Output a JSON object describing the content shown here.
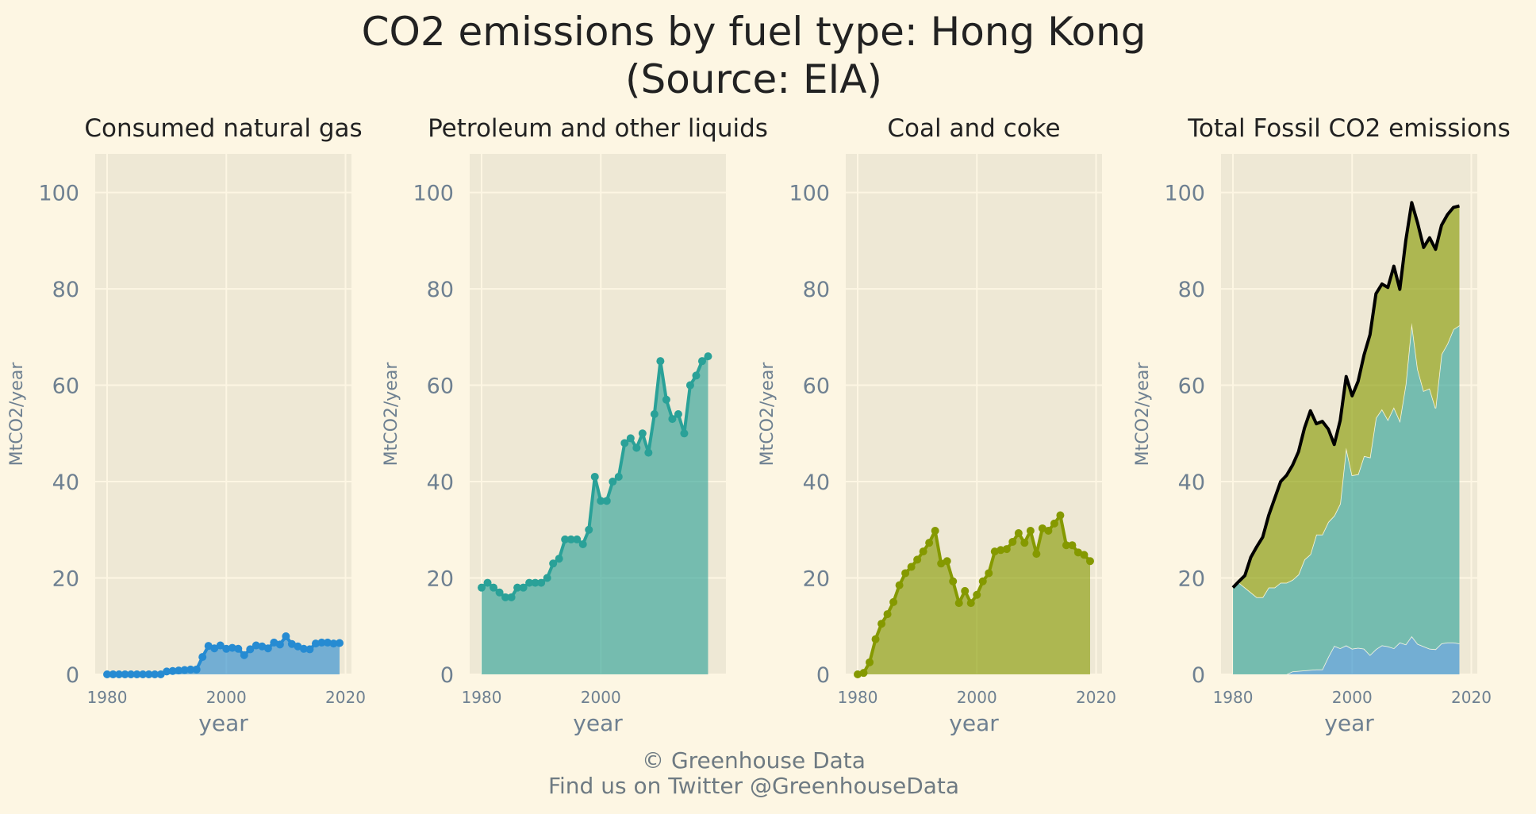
{
  "title": {
    "line1": "CO2 emissions by fuel type: Hong Kong",
    "line2": "(Source: EIA)"
  },
  "footer": {
    "line1": "© Greenhouse Data",
    "line2": "Find us on Twitter @GreenhouseData"
  },
  "colors": {
    "background": "#fdf6e3",
    "panel": "#eee8d5",
    "grid": "#fdf6e3",
    "gas": "#268bd2",
    "petroleum": "#2aa198",
    "coal": "#859900",
    "total": "#000000",
    "tick_text": "#6e8091"
  },
  "chart_data": [
    {
      "type": "area",
      "title": "Consumed natural gas",
      "xlabel": "year",
      "ylabel": "MtCO2/year",
      "xlim": [
        1978,
        2021
      ],
      "ylim": [
        0,
        108
      ],
      "xticks": [
        1980,
        2000,
        2020
      ],
      "yticks": [
        0,
        20,
        40,
        60,
        80,
        100
      ],
      "grid": true,
      "markers": true,
      "x": [
        1980,
        1981,
        1982,
        1983,
        1984,
        1985,
        1986,
        1987,
        1988,
        1989,
        1990,
        1991,
        1992,
        1993,
        1994,
        1995,
        1996,
        1997,
        1998,
        1999,
        2000,
        2001,
        2002,
        2003,
        2004,
        2005,
        2006,
        2007,
        2008,
        2009,
        2010,
        2011,
        2012,
        2013,
        2014,
        2015,
        2016,
        2017,
        2018,
        2019
      ],
      "series": [
        {
          "name": "Consumed natural gas",
          "color_key": "gas",
          "values": [
            0,
            0,
            0,
            0,
            0,
            0,
            0,
            0,
            0,
            0,
            0.6,
            0.7,
            0.8,
            0.9,
            1.0,
            1.0,
            3.6,
            5.9,
            5.4,
            6.0,
            5.3,
            5.5,
            5.3,
            4.0,
            5.2,
            6.0,
            5.8,
            5.4,
            6.6,
            6.2,
            7.9,
            6.3,
            5.8,
            5.3,
            5.2,
            6.4,
            6.6,
            6.6,
            6.4,
            6.5
          ]
        }
      ]
    },
    {
      "type": "area",
      "title": "Petroleum and other liquids",
      "xlabel": "year",
      "ylabel": "MtCO2/year",
      "xlim": [
        1978,
        2021
      ],
      "ylim": [
        0,
        108
      ],
      "xticks": [
        1980,
        2000
      ],
      "yticks": [
        0,
        20,
        40,
        60,
        80,
        100
      ],
      "grid": true,
      "markers": true,
      "x": [
        1980,
        1981,
        1982,
        1983,
        1984,
        1985,
        1986,
        1987,
        1988,
        1989,
        1990,
        1991,
        1992,
        1993,
        1994,
        1995,
        1996,
        1997,
        1998,
        1999,
        2000,
        2001,
        2002,
        2003,
        2004,
        2005,
        2006,
        2007,
        2008,
        2009,
        2010,
        2011,
        2012,
        2013,
        2014,
        2015,
        2016,
        2017,
        2018
      ],
      "series": [
        {
          "name": "Petroleum and other liquids",
          "color_key": "petroleum",
          "values": [
            18,
            19,
            18,
            17,
            16,
            16,
            18,
            18,
            19,
            19,
            19,
            20,
            23,
            24,
            28,
            28,
            28,
            27,
            30,
            41,
            36,
            36,
            40,
            41,
            48,
            49,
            47,
            50,
            46,
            54,
            65,
            57,
            53,
            54,
            50,
            60,
            62,
            65,
            66
          ]
        }
      ]
    },
    {
      "type": "area",
      "title": "Coal and coke",
      "xlabel": "year",
      "ylabel": "MtCO2/year",
      "xlim": [
        1978,
        2021
      ],
      "ylim": [
        0,
        108
      ],
      "xticks": [
        1980,
        2000,
        2020
      ],
      "yticks": [
        0,
        20,
        40,
        60,
        80,
        100
      ],
      "grid": true,
      "markers": true,
      "x": [
        1980,
        1981,
        1982,
        1983,
        1984,
        1985,
        1986,
        1987,
        1988,
        1989,
        1990,
        1991,
        1992,
        1993,
        1994,
        1995,
        1996,
        1997,
        1998,
        1999,
        2000,
        2001,
        2002,
        2003,
        2004,
        2005,
        2006,
        2007,
        2008,
        2009,
        2010,
        2011,
        2012,
        2013,
        2014,
        2015,
        2016,
        2017,
        2018,
        2019
      ],
      "series": [
        {
          "name": "Coal and coke",
          "color_key": "coal",
          "values": [
            0,
            0.3,
            2.5,
            7.3,
            10.5,
            12.5,
            15,
            18.5,
            21,
            22.3,
            23.8,
            25.5,
            27.3,
            29.8,
            23,
            23.5,
            19.3,
            14.8,
            17.3,
            14.8,
            16.5,
            19.3,
            21,
            25.5,
            25.8,
            26,
            27.5,
            29.3,
            27.3,
            29.8,
            25,
            30.3,
            29.8,
            31.3,
            33,
            26.8,
            26.8,
            25.3,
            24.8,
            23.5
          ]
        }
      ]
    },
    {
      "type": "area",
      "title": "Total Fossil CO2 emissions",
      "xlabel": "year",
      "ylabel": "MtCO2/year",
      "xlim": [
        1978,
        2021
      ],
      "ylim": [
        0,
        108
      ],
      "xticks": [
        1980,
        2000,
        2020
      ],
      "yticks": [
        0,
        20,
        40,
        60,
        80,
        100
      ],
      "grid": true,
      "stacked": true,
      "x": [
        1980,
        1981,
        1982,
        1983,
        1984,
        1985,
        1986,
        1987,
        1988,
        1989,
        1990,
        1991,
        1992,
        1993,
        1994,
        1995,
        1996,
        1997,
        1998,
        1999,
        2000,
        2001,
        2002,
        2003,
        2004,
        2005,
        2006,
        2007,
        2008,
        2009,
        2010,
        2011,
        2012,
        2013,
        2014,
        2015,
        2016,
        2017,
        2018
      ],
      "series": [
        {
          "name": "Consumed natural gas",
          "color_key": "gas",
          "values": [
            0,
            0,
            0,
            0,
            0,
            0,
            0,
            0,
            0,
            0,
            0.6,
            0.7,
            0.8,
            0.9,
            1.0,
            1.0,
            3.6,
            5.9,
            5.4,
            6.0,
            5.3,
            5.5,
            5.3,
            4.0,
            5.2,
            6.0,
            5.8,
            5.4,
            6.6,
            6.2,
            7.9,
            6.3,
            5.8,
            5.3,
            5.2,
            6.4,
            6.6,
            6.6,
            6.4
          ]
        },
        {
          "name": "Petroleum and other liquids",
          "color_key": "petroleum",
          "values": [
            18,
            19,
            18,
            17,
            16,
            16,
            18,
            18,
            19,
            19,
            19,
            20,
            23,
            24,
            28,
            28,
            28,
            27,
            30,
            41,
            36,
            36,
            40,
            41,
            48,
            49,
            47,
            50,
            46,
            54,
            65,
            57,
            53,
            54,
            50,
            60,
            62,
            65,
            66
          ]
        },
        {
          "name": "Coal and coke",
          "color_key": "coal",
          "values": [
            0,
            0.3,
            2.5,
            7.3,
            10.5,
            12.5,
            15,
            18.5,
            21,
            22.3,
            23.8,
            25.5,
            27.3,
            29.8,
            23,
            23.5,
            19.3,
            14.8,
            17.3,
            14.8,
            16.5,
            19.3,
            21,
            25.5,
            25.8,
            26,
            27.5,
            29.3,
            27.3,
            29.8,
            25,
            30.3,
            29.8,
            31.3,
            33,
            26.8,
            26.8,
            25.3,
            24.8
          ]
        }
      ],
      "total_line": {
        "name": "Total Fossil CO2 emissions",
        "color_key": "total"
      }
    }
  ]
}
